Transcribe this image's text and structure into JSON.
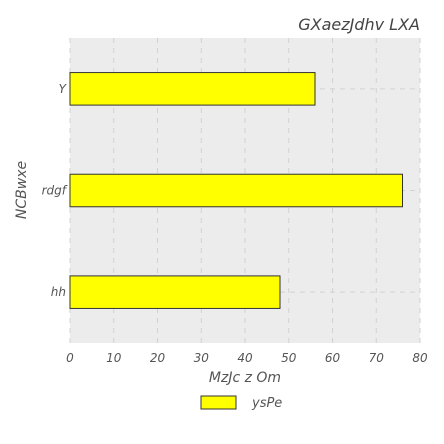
{
  "chart_data": {
    "type": "bar",
    "orientation": "horizontal",
    "title": "GXaezJdhv LXA",
    "xlabel": "MzJc z  Om",
    "ylabel": "NCBwxe",
    "categories": [
      "Y",
      "rdgf",
      "hh"
    ],
    "series": [
      {
        "name": "ysPe",
        "values": [
          56,
          76,
          48
        ]
      }
    ],
    "xlim": [
      0,
      80
    ],
    "xticks": [
      "0",
      "10",
      "20",
      "30",
      "40",
      "50",
      "60",
      "70",
      "80"
    ],
    "grid": true,
    "legend_position": "bottom",
    "colors": {
      "bar_fill": "#ffff00",
      "bar_stroke": "#333333",
      "plot_background": "#ececec",
      "grid": "#d2d2d2"
    }
  }
}
